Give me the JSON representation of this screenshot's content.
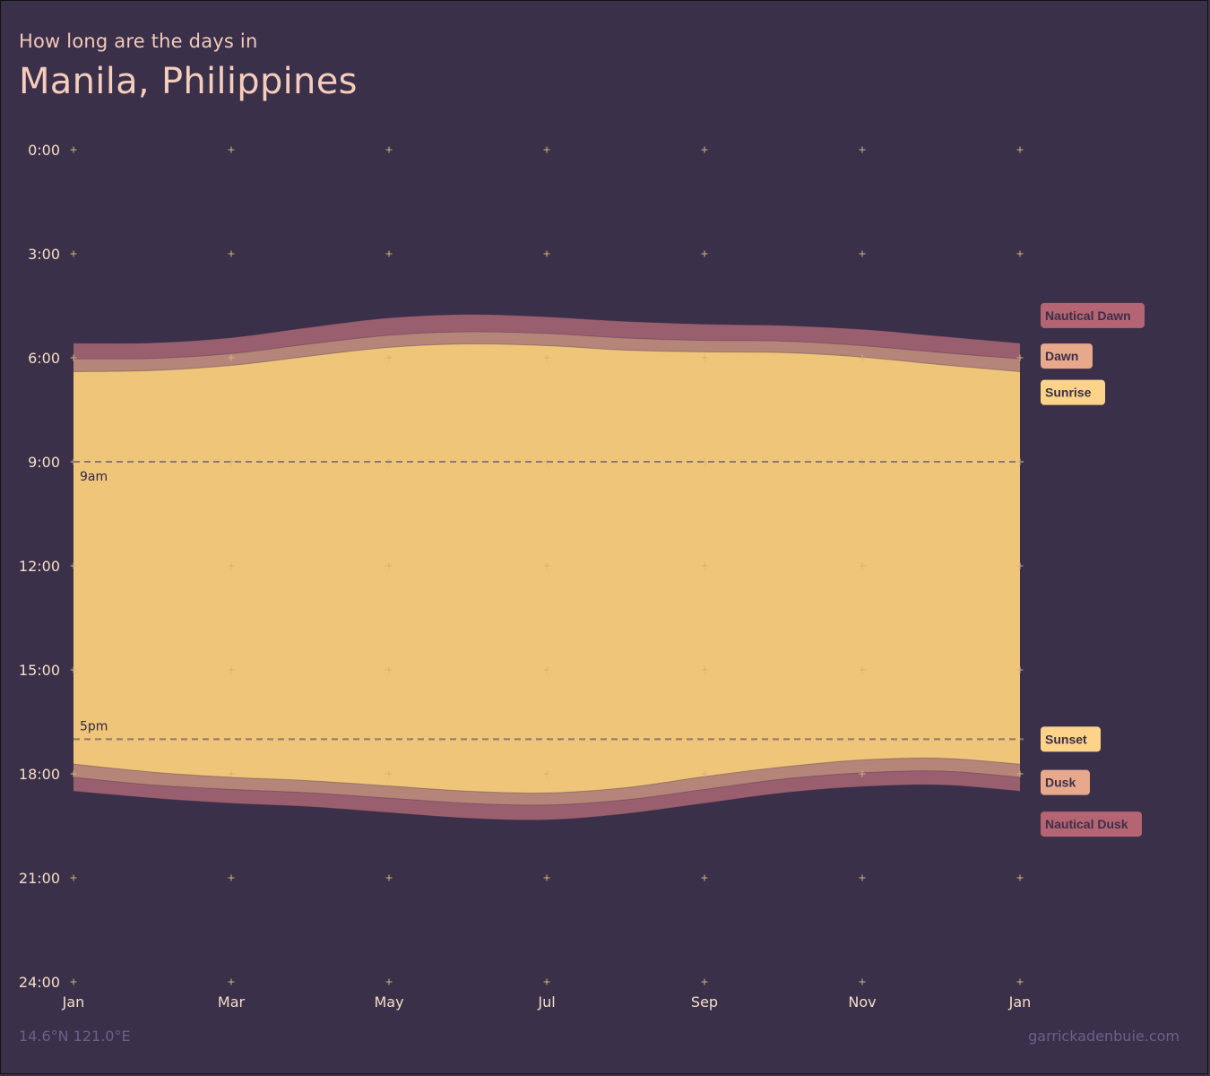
{
  "header": {
    "subtitle": "How long are the days in",
    "title": "Manila, Philippines"
  },
  "footer": {
    "coords": "14.6°N 121.0°E",
    "credit": "garrickadenbuie.com"
  },
  "colors": {
    "background": "#3a3049",
    "nautical": "#9a5f6f",
    "civil": "#b5857a",
    "day": "#efc579",
    "legend_nautical": "#b46472",
    "legend_civil": "#e8a88c",
    "legend_sun": "#fcd388",
    "grid_plus": "#d4b27a",
    "guide_line": "#8a7a72"
  },
  "chart_data": {
    "type": "area",
    "x_unit": "month",
    "y_unit": "hour of day",
    "ylim": [
      0,
      24
    ],
    "y_ticks": [
      0,
      3,
      6,
      9,
      12,
      15,
      18,
      21,
      24
    ],
    "y_tick_labels": [
      "0:00",
      "3:00",
      "6:00",
      "9:00",
      "12:00",
      "15:00",
      "18:00",
      "21:00",
      "24:00"
    ],
    "x_ticks": [
      1,
      3,
      5,
      7,
      9,
      11,
      13
    ],
    "x_tick_labels": [
      "Jan",
      "Mar",
      "May",
      "Jul",
      "Sep",
      "Nov",
      "Jan"
    ],
    "x": [
      1,
      2,
      3,
      4,
      5,
      6,
      7,
      8,
      9,
      10,
      11,
      12,
      13
    ],
    "series": [
      {
        "name": "Nautical Dawn",
        "values": [
          5.58,
          5.57,
          5.42,
          5.12,
          4.85,
          4.75,
          4.82,
          4.95,
          5.03,
          5.07,
          5.18,
          5.38,
          5.58
        ]
      },
      {
        "name": "Dawn",
        "values": [
          6.03,
          6.02,
          5.88,
          5.6,
          5.35,
          5.25,
          5.3,
          5.43,
          5.5,
          5.52,
          5.65,
          5.85,
          6.03
        ]
      },
      {
        "name": "Sunrise",
        "values": [
          6.4,
          6.37,
          6.22,
          5.95,
          5.7,
          5.6,
          5.65,
          5.78,
          5.83,
          5.85,
          5.98,
          6.2,
          6.4
        ]
      },
      {
        "name": "Sunset",
        "values": [
          17.72,
          17.95,
          18.1,
          18.2,
          18.35,
          18.5,
          18.55,
          18.4,
          18.08,
          17.8,
          17.6,
          17.55,
          17.72
        ]
      },
      {
        "name": "Dusk",
        "values": [
          18.1,
          18.32,
          18.45,
          18.55,
          18.7,
          18.85,
          18.9,
          18.75,
          18.45,
          18.15,
          17.97,
          17.92,
          18.1
        ]
      },
      {
        "name": "Nautical Dusk",
        "values": [
          18.5,
          18.7,
          18.85,
          18.95,
          19.12,
          19.28,
          19.33,
          19.15,
          18.85,
          18.55,
          18.37,
          18.32,
          18.5
        ]
      }
    ],
    "guides": [
      {
        "label": "9am",
        "value": 9
      },
      {
        "label": "5pm",
        "value": 17
      }
    ],
    "legend": [
      {
        "label": "Nautical Dawn",
        "color": "#b46472",
        "value": 4.78
      },
      {
        "label": "Dawn",
        "color": "#e8a88c",
        "value": 5.95
      },
      {
        "label": "Sunrise",
        "color": "#fcd388",
        "value": 7.0
      },
      {
        "label": "Sunset",
        "color": "#fcd388",
        "value": 17.0
      },
      {
        "label": "Dusk",
        "color": "#e8a88c",
        "value": 18.25
      },
      {
        "label": "Nautical Dusk",
        "color": "#b46472",
        "value": 19.45
      }
    ]
  }
}
